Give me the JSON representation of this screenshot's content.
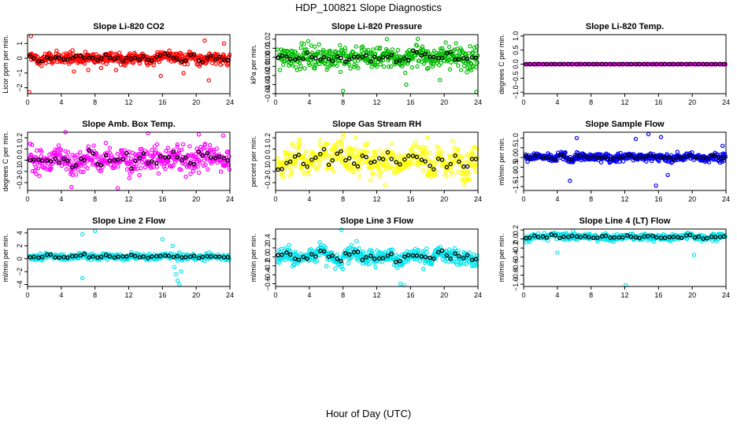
{
  "figure": {
    "title": "HDP_100821  Slope Diagnostics",
    "xlabel": "Hour of Day (UTC)"
  },
  "chart_data": [
    {
      "type": "scatter",
      "title": "Slope Li-820 CO2",
      "ylabel": "Licor ppm per min.",
      "color": "#ff0000",
      "xlim": [
        0,
        24
      ],
      "xticks": [
        0,
        4,
        8,
        12,
        16,
        20,
        24
      ],
      "ylim": [
        -2.4,
        1.6
      ],
      "yticks": [
        -2,
        -1,
        0,
        1
      ],
      "ytick_labels": [
        "−2",
        "−1",
        "0",
        "1"
      ],
      "spread": 0.28,
      "hourly_values": [
        0.1,
        -0.2,
        0.0,
        0.05,
        -0.1,
        0.1,
        0.0,
        0.05,
        -0.05,
        0.1,
        0.0,
        -0.1,
        0.05,
        0.0,
        -0.15,
        0.1,
        0.2,
        0.0,
        -0.1,
        0.1,
        -0.2,
        0.05,
        0.0,
        -0.05
      ],
      "outliers": [
        [
          0.4,
          1.5
        ],
        [
          0.2,
          -2.3
        ],
        [
          5.5,
          -0.9
        ],
        [
          7.2,
          -0.8
        ],
        [
          10.5,
          -0.8
        ],
        [
          15.8,
          -1.2
        ],
        [
          18.5,
          -1.0
        ],
        [
          21.0,
          1.2
        ],
        [
          21.5,
          -1.5
        ],
        [
          23.3,
          1.0
        ]
      ]
    },
    {
      "type": "scatter",
      "title": "Slope Li-820 Pressure",
      "ylabel": "kPa per min.",
      "color": "#00bb00",
      "xlim": [
        0,
        24
      ],
      "xticks": [
        0,
        4,
        8,
        12,
        16,
        20,
        24
      ],
      "ylim": [
        -0.04,
        0.025
      ],
      "yticks": [
        -0.04,
        -0.03,
        -0.02,
        -0.01,
        0.0,
        0.01,
        0.02
      ],
      "ytick_labels": [
        "−0.04",
        "−0.03",
        "−0.02",
        "−0.01",
        "0.00",
        "0.01",
        "0.02"
      ],
      "spread": 0.009,
      "hourly_values": [
        0.0,
        0.0,
        0.001,
        0.002,
        0.0,
        0.001,
        0.0,
        0.0,
        -0.001,
        0.0,
        0.001,
        0.0,
        0.0,
        0.002,
        -0.001,
        0.0,
        0.003,
        0.001,
        0.0,
        0.0,
        0.002,
        0.0,
        0.001,
        0.0
      ],
      "outliers": [
        [
          8.0,
          -0.037
        ],
        [
          13.2,
          0.02
        ],
        [
          15.5,
          -0.03
        ],
        [
          19.5,
          -0.025
        ],
        [
          23.8,
          -0.038
        ]
      ]
    },
    {
      "type": "scatter",
      "title": "Slope Li-820 Temp.",
      "ylabel": "degrees C per min.",
      "color": "#ff00ff",
      "xlim": [
        0,
        24
      ],
      "xticks": [
        0,
        4,
        8,
        12,
        16,
        20,
        24
      ],
      "ylim": [
        -1.05,
        1.05
      ],
      "yticks": [
        -1.0,
        -0.5,
        0.0,
        0.5,
        1.0
      ],
      "ytick_labels": [
        "−1.0",
        "−0.5",
        "0.0",
        "0.5",
        "1.0"
      ],
      "spread": 0.004,
      "hourly_values": [
        0,
        0,
        0,
        0,
        0,
        0,
        0,
        0,
        0,
        0,
        0,
        0,
        0,
        0,
        0,
        0,
        0,
        0,
        0,
        0,
        0,
        0,
        0,
        0
      ],
      "outliers": []
    },
    {
      "type": "scatter",
      "title": "Slope Amb. Box Temp.",
      "ylabel": "degrees C per min.",
      "color": "#ff00ff",
      "xlim": [
        0,
        24
      ],
      "xticks": [
        0,
        4,
        8,
        12,
        16,
        20,
        24
      ],
      "ylim": [
        -0.27,
        0.25
      ],
      "yticks": [
        -0.2,
        -0.1,
        0.0,
        0.1,
        0.2
      ],
      "ytick_labels": [
        "−0.2",
        "−0.1",
        "0.0",
        "0.1",
        "0.2"
      ],
      "spread": 0.075,
      "hourly_values": [
        0.02,
        0.0,
        -0.02,
        0.03,
        0.01,
        -0.04,
        0.0,
        0.05,
        -0.02,
        0.01,
        0.0,
        0.03,
        -0.03,
        0.02,
        0.0,
        0.01,
        -0.01,
        0.04,
        0.0,
        -0.02,
        0.03,
        0.05,
        0.02,
        0.0
      ],
      "outliers": [
        [
          4.5,
          0.25
        ],
        [
          5.2,
          -0.24
        ],
        [
          10.7,
          -0.25
        ],
        [
          14.3,
          0.24
        ],
        [
          20.3,
          0.23
        ],
        [
          23.2,
          0.22
        ]
      ]
    },
    {
      "type": "scatter",
      "title": "Slope Gas Stream RH",
      "ylabel": "percent per min.",
      "color": "#ffff00",
      "xlim": [
        0,
        24
      ],
      "xticks": [
        0,
        4,
        8,
        12,
        16,
        20,
        24
      ],
      "ylim": [
        -0.27,
        0.25
      ],
      "yticks": [
        -0.2,
        -0.1,
        0.0,
        0.1,
        0.2
      ],
      "ytick_labels": [
        "−0.2",
        "−0.1",
        "0.0",
        "0.1",
        "0.2"
      ],
      "spread": 0.085,
      "hourly_values": [
        -0.05,
        0.0,
        0.05,
        -0.03,
        0.02,
        0.06,
        0.0,
        0.08,
        0.02,
        -0.02,
        0.05,
        -0.04,
        0.0,
        0.03,
        -0.03,
        0.0,
        0.05,
        0.02,
        -0.06,
        0.0,
        -0.05,
        0.03,
        -0.07,
        0.0
      ],
      "outliers": [
        [
          8.0,
          0.24
        ],
        [
          9.5,
          0.2
        ],
        [
          13.0,
          -0.22
        ],
        [
          18.0,
          0.2
        ]
      ]
    },
    {
      "type": "scatter",
      "title": "Slope Sample Flow",
      "ylabel": "ml/min per min.",
      "color": "#0000ff",
      "xlim": [
        0,
        24
      ],
      "xticks": [
        0,
        4,
        8,
        12,
        16,
        20,
        24
      ],
      "ylim": [
        -1.7,
        1.3
      ],
      "yticks": [
        -1.5,
        -1.0,
        -0.5,
        0.0,
        0.5,
        1.0
      ],
      "ytick_labels": [
        "−1.5",
        "−1.0",
        "−0.5",
        "0.0",
        "0.5",
        "1.0"
      ],
      "spread": 0.14,
      "hourly_values": [
        0.0,
        0.05,
        0.0,
        -0.05,
        0.1,
        -0.1,
        0.05,
        0.0,
        0.0,
        0.05,
        -0.05,
        0.0,
        0.1,
        0.0,
        0.0,
        0.05,
        0.0,
        -0.05,
        0.0,
        0.05,
        0.0,
        -0.05,
        0.05,
        0.0
      ],
      "outliers": [
        [
          6.3,
          1.0
        ],
        [
          5.5,
          -1.2
        ],
        [
          13.3,
          0.95
        ],
        [
          14.8,
          1.2
        ],
        [
          16.3,
          1.05
        ],
        [
          15.7,
          -1.45
        ],
        [
          17.1,
          -0.9
        ],
        [
          23.6,
          0.6
        ]
      ]
    },
    {
      "type": "scatter",
      "title": "Slope Line 2 Flow",
      "ylabel": "ml/min per min.",
      "color": "#00e5ee",
      "xlim": [
        0,
        24
      ],
      "xticks": [
        0,
        4,
        8,
        12,
        16,
        20,
        24
      ],
      "ylim": [
        -4.3,
        4.6
      ],
      "yticks": [
        -4,
        -2,
        0,
        2,
        4
      ],
      "ytick_labels": [
        "−4",
        "−2",
        "0",
        "2",
        "4"
      ],
      "spread": 0.32,
      "hourly_values": [
        0.3,
        0.2,
        0.5,
        0.3,
        0.2,
        0.4,
        0.6,
        0.3,
        0.2,
        0.5,
        0.3,
        0.2,
        0.4,
        0.3,
        0.2,
        0.3,
        0.5,
        0.3,
        0.2,
        0.3,
        0.2,
        0.4,
        0.3,
        0.2
      ],
      "outliers": [
        [
          6.5,
          -3.0
        ],
        [
          6.5,
          3.8
        ],
        [
          8.0,
          4.3
        ],
        [
          16.0,
          3.0
        ],
        [
          17.2,
          2.0
        ],
        [
          17.4,
          -1.3
        ],
        [
          17.6,
          -2.4
        ],
        [
          17.8,
          -3.4
        ],
        [
          18.0,
          -4.0
        ],
        [
          18.2,
          -2.0
        ]
      ]
    },
    {
      "type": "scatter",
      "title": "Slope Line 3 Flow",
      "ylabel": "ml/min per min.",
      "color": "#00e5ee",
      "xlim": [
        0,
        24
      ],
      "xticks": [
        0,
        4,
        8,
        12,
        16,
        20,
        24
      ],
      "ylim": [
        -0.66,
        0.62
      ],
      "yticks": [
        -0.6,
        -0.4,
        -0.2,
        0.0,
        0.2,
        0.4
      ],
      "ytick_labels": [
        "−0.6",
        "−0.4",
        "−0.2",
        "0.0",
        "0.2",
        "0.4"
      ],
      "spread": 0.12,
      "hourly_values": [
        0.05,
        0.1,
        -0.05,
        0.0,
        0.05,
        0.15,
        0.0,
        -0.1,
        0.05,
        0.1,
        -0.05,
        0.0,
        0.0,
        0.05,
        -0.1,
        0.0,
        0.05,
        0.0,
        -0.05,
        0.1,
        0.0,
        0.05,
        0.0,
        -0.05
      ],
      "outliers": [
        [
          7.8,
          0.6
        ],
        [
          9.6,
          0.35
        ],
        [
          14.8,
          -0.6
        ],
        [
          15.2,
          -0.63
        ]
      ]
    },
    {
      "type": "scatter",
      "title": "Slope Line 4 (LT) Flow",
      "ylabel": "ml/min per min.",
      "color": "#00e5ee",
      "xlim": [
        0,
        24
      ],
      "xticks": [
        0,
        4,
        8,
        12,
        16,
        20,
        24
      ],
      "ylim": [
        -1.05,
        0.22
      ],
      "yticks": [
        -1.0,
        -0.8,
        -0.6,
        -0.4,
        -0.2,
        0.0,
        0.2
      ],
      "ytick_labels": [
        "−1.0",
        "−0.8",
        "−0.6",
        "−0.4",
        "−0.2",
        "0.0",
        "0.2"
      ],
      "spread": 0.05,
      "hourly_values": [
        0.02,
        0.05,
        0.03,
        0.08,
        0.05,
        0.07,
        0.04,
        0.06,
        0.03,
        0.05,
        0.02,
        0.04,
        0.06,
        0.03,
        0.05,
        0.04,
        0.02,
        0.03,
        0.05,
        0.08,
        0.04,
        0.03,
        0.05,
        0.06
      ],
      "outliers": [
        [
          4.0,
          -0.3
        ],
        [
          12.1,
          -1.02
        ],
        [
          20.2,
          -0.35
        ]
      ]
    }
  ]
}
